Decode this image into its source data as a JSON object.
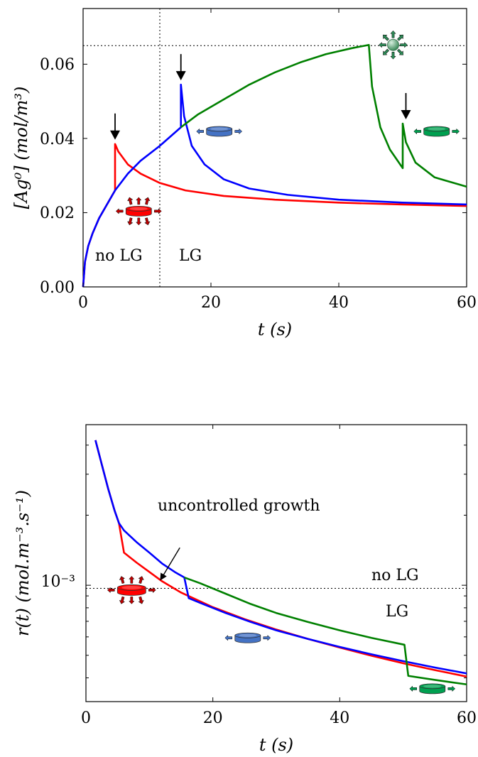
{
  "chart_data": [
    {
      "type": "line",
      "xlabel": "t (s)",
      "ylabel": "[Ag⁰] (mol/m³)",
      "xlim": [
        0,
        60
      ],
      "ylim": [
        0,
        0.075
      ],
      "xticks": [
        "0",
        "20",
        "40",
        "60"
      ],
      "yticks": [
        "0.00",
        "0.02",
        "0.04",
        "0.06"
      ],
      "ref_vline_x": 12,
      "ref_hline_y": 0.065,
      "region_labels": {
        "left": "no LG",
        "right": "LG"
      },
      "series": [
        {
          "color": "#ff0000",
          "x": [
            0,
            0.3,
            0.8,
            1.5,
            2.5,
            3.5,
            4.5,
            5,
            5,
            5.5,
            7,
            9,
            12,
            16,
            22,
            30,
            40,
            50,
            60
          ],
          "y": [
            0,
            0.0068,
            0.011,
            0.0145,
            0.0185,
            0.0215,
            0.0245,
            0.026,
            0.0385,
            0.0365,
            0.033,
            0.0305,
            0.028,
            0.026,
            0.0245,
            0.0235,
            0.0227,
            0.0222,
            0.0218
          ]
        },
        {
          "color": "#0000ff",
          "x": [
            0,
            0.3,
            0.8,
            1.5,
            2.5,
            3.5,
            5,
            7,
            9,
            12,
            15.3,
            15.3,
            15.8,
            17,
            19,
            22,
            26,
            32,
            40,
            50,
            60
          ],
          "y": [
            0,
            0.0068,
            0.011,
            0.0145,
            0.0185,
            0.0215,
            0.026,
            0.0305,
            0.034,
            0.038,
            0.043,
            0.0545,
            0.046,
            0.038,
            0.033,
            0.029,
            0.0265,
            0.0248,
            0.0235,
            0.0227,
            0.0222
          ]
        },
        {
          "color": "#008000",
          "x": [
            15.3,
            18,
            22,
            26,
            30,
            34,
            38,
            42,
            44.7,
            44.7,
            45.2,
            46.5,
            48,
            50,
            50,
            50.5,
            52,
            55,
            58,
            60
          ],
          "y": [
            0.043,
            0.0465,
            0.0505,
            0.0545,
            0.0578,
            0.0605,
            0.0627,
            0.0643,
            0.0652,
            0.0652,
            0.054,
            0.043,
            0.037,
            0.032,
            0.044,
            0.039,
            0.0335,
            0.0295,
            0.028,
            0.027
          ]
        }
      ],
      "markers": [
        {
          "kind": "arrow",
          "x": 5,
          "y": 0.0385
        },
        {
          "kind": "arrow",
          "x": 15.3,
          "y": 0.0545
        },
        {
          "kind": "arrow",
          "x": 50.5,
          "y": 0.044
        },
        {
          "kind": "disc",
          "x": 8.7,
          "y": 0.0203,
          "color": "#ff0000",
          "burst": true
        },
        {
          "kind": "disc",
          "x": 21.3,
          "y": 0.0418,
          "color": "#4472c4",
          "burst": false
        },
        {
          "kind": "disc",
          "x": 55.3,
          "y": 0.0418,
          "color": "#00a050",
          "burst": false
        },
        {
          "kind": "sphere",
          "x": 48.5,
          "y": 0.0652,
          "color": "#5aa27a"
        }
      ]
    },
    {
      "type": "line",
      "xlabel": "t (s)",
      "ylabel": "r(t) (mol.m⁻³.s⁻¹)",
      "xlim": [
        0,
        60
      ],
      "yscale": "log",
      "xticks": [
        "0",
        "20",
        "40",
        "60"
      ],
      "yticks": [
        "10⁻³"
      ],
      "ref_hline_y": 0.00097,
      "region_labels": {
        "upper": "no LG",
        "lower": "LG"
      },
      "annotation": {
        "text": "uncontrolled growth",
        "tail": [
          14.8,
          0.00145
        ],
        "head": [
          11.8,
          0.00106
        ]
      },
      "series": [
        {
          "color": "#ff0000",
          "x": [
            1.5,
            2.5,
            3.5,
            4.5,
            5.2,
            6.0,
            8,
            10,
            12,
            15,
            20,
            25,
            30,
            35,
            40,
            45,
            50,
            55,
            60
          ],
          "y": [
            0.0042,
            0.0033,
            0.0026,
            0.0021,
            0.00185,
            0.00138,
            0.00125,
            0.00114,
            0.00104,
            0.00093,
            0.000805,
            0.000715,
            0.000645,
            0.000588,
            0.00054,
            0.000498,
            0.000462,
            0.000432,
            0.000405
          ]
        },
        {
          "color": "#0000ff",
          "x": [
            1.5,
            2.5,
            3.5,
            4.5,
            5.2,
            6,
            8,
            10,
            12,
            14,
            15.5,
            16.2,
            18,
            22,
            26,
            30,
            35,
            40,
            45,
            50,
            55,
            60
          ],
          "y": [
            0.0042,
            0.0033,
            0.0026,
            0.0021,
            0.00185,
            0.00172,
            0.00153,
            0.00138,
            0.00124,
            0.00114,
            0.00108,
            0.00088,
            0.00084,
            0.00076,
            0.000695,
            0.00064,
            0.000588,
            0.000543,
            0.000505,
            0.000472,
            0.000443,
            0.000418
          ]
        },
        {
          "color": "#008000",
          "x": [
            15.5,
            18,
            22,
            26,
            30,
            35,
            40,
            45,
            50.2,
            50.8,
            55,
            60
          ],
          "y": [
            0.00108,
            0.00102,
            0.00092,
            0.00083,
            0.00076,
            0.000695,
            0.00064,
            0.000594,
            0.000555,
            0.000408,
            0.000392,
            0.000375
          ]
        }
      ],
      "markers": [
        {
          "kind": "disc",
          "x": 7.2,
          "y": 0.00095,
          "color": "#ff0000",
          "burst": true
        },
        {
          "kind": "disc",
          "x": 25.5,
          "y": 0.000592,
          "color": "#4472c4",
          "burst": false
        },
        {
          "kind": "disc",
          "x": 54.6,
          "y": 0.000358,
          "color": "#00a050",
          "burst": false
        }
      ]
    }
  ]
}
